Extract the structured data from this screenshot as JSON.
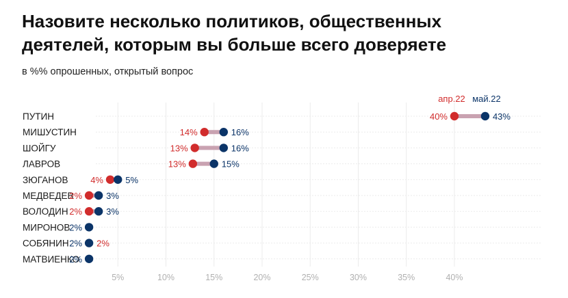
{
  "title_lines": [
    "Назовите несколько политиков, общественных",
    "деятелей, которым вы больше всего доверяете"
  ],
  "subtitle": "в %% опрошенных, открытый вопрос",
  "colors": {
    "apr": "#d12c2c",
    "may": "#0b3468",
    "connector": "#c9a2b1",
    "grid": "#ebebeb"
  },
  "chart_data": {
    "type": "dot",
    "x_ticks": [
      "5%",
      "10%",
      "15%",
      "20%",
      "25%",
      "30%",
      "35%",
      "40%"
    ],
    "x_tick_values": [
      5,
      10,
      15,
      20,
      25,
      30,
      35,
      40
    ],
    "xlim": [
      0,
      45
    ],
    "grid": true,
    "categories": [
      "ПУТИН",
      "МИШУСТИН",
      "ШОЙГУ",
      "ЛАВРОВ",
      "ЗЮГАНОВ",
      "МЕДВЕДЕВ",
      "ВОЛОДИН",
      "МИРОНОВ",
      "СОБЯНИН",
      "МАТВИЕНКО"
    ],
    "series": [
      {
        "name": "апр.22",
        "values": [
          40,
          14,
          13,
          12.8,
          4.2,
          2,
          2,
          null,
          2,
          null
        ],
        "labels": [
          "40%",
          "14%",
          "13%",
          "13%",
          "4%",
          "2%",
          "2%",
          "",
          "2%",
          ""
        ]
      },
      {
        "name": "май.22",
        "values": [
          43.2,
          16,
          16,
          15,
          5,
          3,
          3,
          2,
          2,
          2
        ],
        "labels": [
          "43%",
          "16%",
          "16%",
          "15%",
          "5%",
          "3%",
          "3%",
          "2%",
          "2%",
          "2%"
        ]
      }
    ],
    "legend": "above first row"
  }
}
